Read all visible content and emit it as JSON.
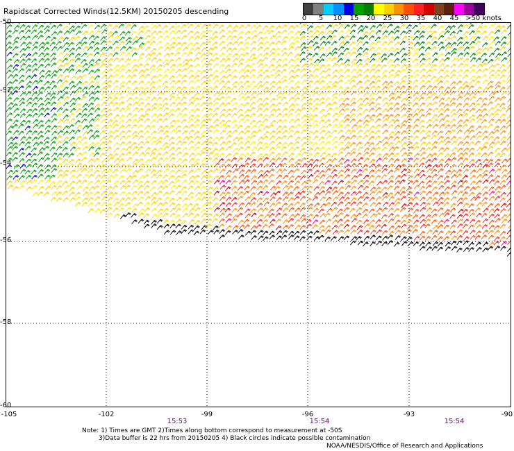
{
  "title": "Rapidscat Corrected Winds(12.5KM) 20150205 descending",
  "colorbar": {
    "colors": [
      "#404040",
      "#808080",
      "#00d0ff",
      "#0090ff",
      "#0000e0",
      "#00a000",
      "#008000",
      "#ffff00",
      "#ffd000",
      "#ff9000",
      "#ff5000",
      "#ff2020",
      "#d00000",
      "#804020",
      "#602010",
      "#ff00ff",
      "#a000a0",
      "#400060"
    ],
    "labels": [
      "0",
      "5",
      "10",
      "15",
      "20",
      "25",
      "30",
      "35",
      "40",
      "45",
      ">50 knots"
    ]
  },
  "axes": {
    "y_labels": [
      "-50",
      "-52",
      "-54",
      "-56",
      "-58",
      "-60"
    ],
    "x_labels": [
      "-105",
      "-102",
      "-99",
      "-96",
      "-93",
      "-90"
    ]
  },
  "times": [
    "15:53",
    "15:54",
    "15:54"
  ],
  "notes": [
    "Note: 1) Times are GMT 2)Times along bottom correspond to measurement at -50S",
    "3)Data buffer is 22 hrs from 20150205 4) Black circles indicate possible contamination"
  ],
  "credit": "NOAA/NESDIS/Office of Research and Applications"
}
